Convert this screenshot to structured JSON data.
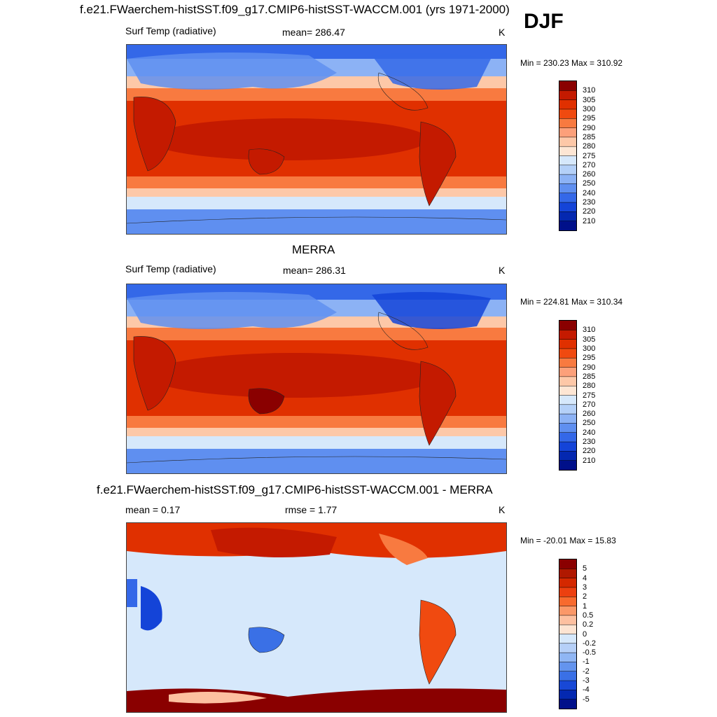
{
  "season": "DJF",
  "panel1": {
    "title": "f.e21.FWaerchem-histSST.f09_g17.CMIP6-histSST-WACCM.001 (yrs 1971-2000)",
    "variable": "Surf Temp (radiative)",
    "stat": "mean= 286.47",
    "units": "K",
    "minmax": "Min = 230.23 Max = 310.92"
  },
  "panel2": {
    "title": "MERRA",
    "variable": "Surf Temp (radiative)",
    "stat": "mean= 286.31",
    "units": "K",
    "minmax": "Min = 224.81 Max = 310.34"
  },
  "panel3": {
    "title": "f.e21.FWaerchem-histSST.f09_g17.CMIP6-histSST-WACCM.001 - MERRA",
    "stat_mean": "mean =   0.17",
    "stat_rmse": "rmse =   1.77",
    "units": "K",
    "minmax": "Min = -20.01 Max =  15.83"
  },
  "colorbar_abs": {
    "labels": [
      "310",
      "305",
      "300",
      "295",
      "290",
      "285",
      "280",
      "275",
      "270",
      "260",
      "250",
      "240",
      "230",
      "220",
      "210"
    ],
    "colors": [
      "#8a0000",
      "#c41a00",
      "#e03000",
      "#f04a10",
      "#f87a40",
      "#fca07a",
      "#fdc8a8",
      "#fde6d4",
      "#d6e8fb",
      "#b4d0f8",
      "#8cb2f5",
      "#5f8ff0",
      "#3468e8",
      "#1444d8",
      "#0428b0",
      "#00108a"
    ]
  },
  "colorbar_diff": {
    "labels": [
      "5",
      "4",
      "3",
      "2",
      "1",
      "0.5",
      "0.2",
      "0",
      "-0.2",
      "-0.5",
      "-1",
      "-2",
      "-3",
      "-4",
      "-5"
    ],
    "colors": [
      "#8a0000",
      "#b01800",
      "#d42800",
      "#ec4010",
      "#f86a2e",
      "#fb9868",
      "#fdc0a0",
      "#fde4d2",
      "#d6e8fb",
      "#b6d0f8",
      "#90b6f4",
      "#6494ee",
      "#3a70e6",
      "#1848d6",
      "#0428b0",
      "#00108a"
    ]
  }
}
